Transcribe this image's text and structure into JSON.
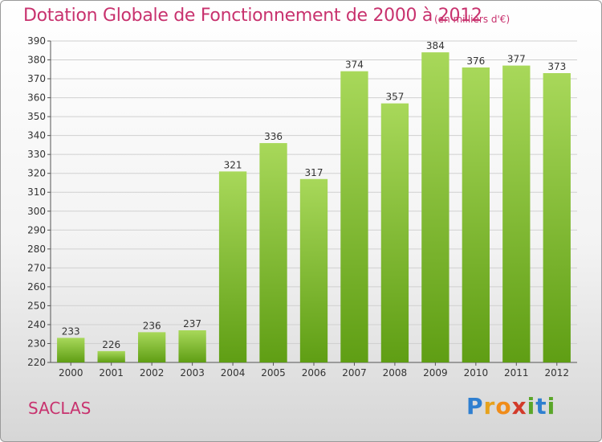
{
  "title": "Dotation Globale de Fonctionnement de 2000 à 2012",
  "subtitle": "(en milliers d'€)",
  "place": "SACLAS",
  "brand": {
    "letters": [
      "P",
      "r",
      "o",
      "x",
      "i",
      "t",
      "i"
    ],
    "colors": [
      "#2f7fd0",
      "#e6a21c",
      "#f08c1a",
      "#d23a2a",
      "#5aa629",
      "#2f7fd0",
      "#5aa629"
    ]
  },
  "colors": {
    "title": "#c8326e",
    "bar_top": "#a8d85a",
    "bar_bottom": "#5f9e14",
    "grid": "#d0d0d0",
    "axis": "#555555"
  },
  "chart_data": {
    "type": "bar",
    "title": "Dotation Globale de Fonctionnement de 2000 à 2012",
    "subtitle": "(en milliers d'€)",
    "xlabel": "",
    "ylabel": "",
    "categories": [
      "2000",
      "2001",
      "2002",
      "2003",
      "2004",
      "2005",
      "2006",
      "2007",
      "2008",
      "2009",
      "2010",
      "2011",
      "2012"
    ],
    "values": [
      233,
      226,
      236,
      237,
      321,
      336,
      317,
      374,
      357,
      384,
      376,
      377,
      373
    ],
    "ylim": [
      220,
      390
    ],
    "ytick_step": 10,
    "grid": true,
    "data_labels": true
  }
}
